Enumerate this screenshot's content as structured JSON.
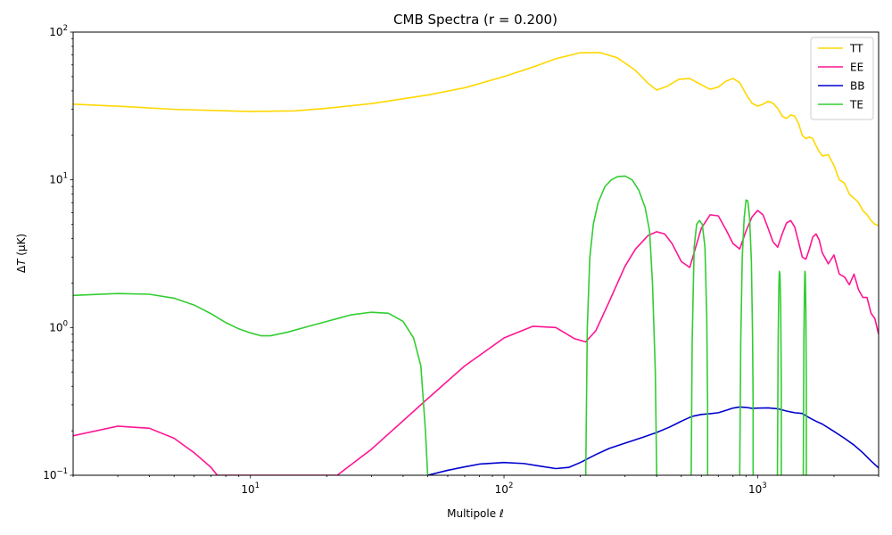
{
  "chart_data": {
    "type": "line",
    "title": "CMB Spectra (r = 0.200)",
    "xlabel": "Multipole ℓ",
    "ylabel_parts": {
      "delta": "Δ",
      "var": "T",
      "unit": " (μK)"
    },
    "xscale": "log",
    "yscale": "log",
    "xlim": [
      2,
      3000
    ],
    "ylim": [
      0.1,
      100
    ],
    "xticks": [
      {
        "value": 10,
        "base": "10",
        "exp": "1"
      },
      {
        "value": 100,
        "base": "10",
        "exp": "2"
      },
      {
        "value": 1000,
        "base": "10",
        "exp": "3"
      }
    ],
    "yticks": [
      {
        "value": 0.1,
        "base": "10",
        "exp": "−1"
      },
      {
        "value": 1,
        "base": "10",
        "exp": "0"
      },
      {
        "value": 10,
        "base": "10",
        "exp": "1"
      },
      {
        "value": 100,
        "base": "10",
        "exp": "2"
      }
    ],
    "grid": false,
    "legend_position": "top-right",
    "series": [
      {
        "name": "TT",
        "color": "#ffd700",
        "x": [
          2,
          3,
          5,
          10,
          15,
          20,
          30,
          50,
          70,
          100,
          130,
          160,
          200,
          240,
          280,
          330,
          370,
          400,
          440,
          490,
          540,
          600,
          650,
          700,
          750,
          800,
          850,
          900,
          950,
          1000,
          1050,
          1100,
          1150,
          1200,
          1250,
          1300,
          1350,
          1400,
          1450,
          1500,
          1550,
          1600,
          1650,
          1700,
          1750,
          1800,
          1900,
          2000,
          2100,
          2200,
          2300,
          2400,
          2500,
          2600,
          2700,
          2800,
          2900,
          3000
        ],
        "y": [
          32.5,
          31.5,
          30,
          29,
          29.3,
          30.5,
          32.8,
          37.5,
          42,
          50,
          58,
          66,
          72.5,
          72.5,
          67,
          55,
          45,
          40.5,
          43,
          48,
          48.5,
          44,
          41,
          42.5,
          46.5,
          48.5,
          45.5,
          38,
          33,
          31.5,
          32.5,
          34,
          33,
          30.5,
          27,
          26,
          27.5,
          27,
          24,
          20,
          19,
          19.5,
          19,
          17,
          15.5,
          14.5,
          14.8,
          12.5,
          10,
          9.5,
          8,
          7.5,
          7,
          6.2,
          5.8,
          5.3,
          5,
          4.9
        ]
      },
      {
        "name": "EE",
        "color": "#ff1493",
        "x": [
          2,
          3,
          4,
          5,
          6,
          7,
          7.4,
          22,
          30,
          50,
          70,
          100,
          130,
          160,
          190,
          210,
          230,
          260,
          300,
          330,
          370,
          400,
          430,
          460,
          500,
          540,
          570,
          600,
          650,
          700,
          750,
          800,
          850,
          900,
          950,
          1000,
          1050,
          1100,
          1150,
          1200,
          1250,
          1300,
          1350,
          1400,
          1450,
          1500,
          1550,
          1600,
          1650,
          1700,
          1750,
          1800,
          1900,
          2000,
          2100,
          2200,
          2300,
          2400,
          2500,
          2600,
          2700,
          2800,
          2900,
          3000
        ],
        "y": [
          0.185,
          0.215,
          0.208,
          0.178,
          0.142,
          0.113,
          0.1,
          0.1,
          0.15,
          0.33,
          0.55,
          0.85,
          1.02,
          1.0,
          0.84,
          0.8,
          0.95,
          1.5,
          2.6,
          3.4,
          4.2,
          4.45,
          4.3,
          3.7,
          2.8,
          2.55,
          3.5,
          4.7,
          5.8,
          5.7,
          4.6,
          3.7,
          3.4,
          4.5,
          5.6,
          6.2,
          5.8,
          4.7,
          3.8,
          3.5,
          4.3,
          5.1,
          5.3,
          4.8,
          3.8,
          3.0,
          2.9,
          3.4,
          4.1,
          4.3,
          3.9,
          3.2,
          2.7,
          3.1,
          2.3,
          2.2,
          1.95,
          2.3,
          1.8,
          1.6,
          1.6,
          1.25,
          1.15,
          0.9
        ]
      },
      {
        "name": "BB",
        "color": "#0000cd",
        "x": [
          50,
          60,
          70,
          80,
          100,
          120,
          140,
          160,
          180,
          200,
          230,
          260,
          300,
          350,
          400,
          450,
          500,
          550,
          600,
          650,
          700,
          750,
          800,
          850,
          900,
          950,
          1000,
          1100,
          1200,
          1300,
          1400,
          1500,
          1600,
          1700,
          1800,
          2000,
          2200,
          2400,
          2600,
          2800,
          3000
        ],
        "y": [
          0.1,
          0.108,
          0.114,
          0.119,
          0.122,
          0.12,
          0.115,
          0.111,
          0.113,
          0.122,
          0.138,
          0.152,
          0.165,
          0.18,
          0.195,
          0.212,
          0.232,
          0.25,
          0.258,
          0.261,
          0.265,
          0.275,
          0.285,
          0.29,
          0.288,
          0.284,
          0.285,
          0.286,
          0.282,
          0.272,
          0.265,
          0.262,
          0.245,
          0.232,
          0.222,
          0.198,
          0.178,
          0.16,
          0.142,
          0.125,
          0.112
        ]
      },
      {
        "name": "TE",
        "color": "#32cd32",
        "x": [
          2,
          3,
          4,
          5,
          6,
          7,
          8,
          9,
          10,
          11,
          12,
          14,
          17,
          20,
          25,
          30,
          35,
          40,
          44,
          47,
          49,
          50,
          50,
          null,
          210,
          210,
          213,
          218,
          225,
          235,
          250,
          265,
          280,
          300,
          320,
          340,
          360,
          375,
          385,
          395,
          400,
          400,
          null,
          547,
          547,
          552,
          562,
          575,
          590,
          605,
          620,
          630,
          635,
          635,
          null,
          850,
          850,
          858,
          870,
          885,
          900,
          915,
          930,
          945,
          955,
          960,
          960,
          null,
          1197,
          1197,
          1205,
          1212,
          1218,
          1225,
          1233,
          1240,
          1240,
          null,
          1514,
          1514,
          1522,
          1530,
          1536,
          1542,
          1550,
          1556,
          1556
        ],
        "y": [
          1.65,
          1.7,
          1.68,
          1.58,
          1.42,
          1.24,
          1.08,
          0.98,
          0.92,
          0.88,
          0.88,
          0.93,
          1.02,
          1.1,
          1.22,
          1.27,
          1.25,
          1.1,
          0.85,
          0.55,
          0.2,
          0.1,
          0.1,
          null,
          0.1,
          0.1,
          1.0,
          3.0,
          5.0,
          7.0,
          9.0,
          10.0,
          10.5,
          10.6,
          10.0,
          8.5,
          6.5,
          4.5,
          2.0,
          0.5,
          0.1,
          0.1,
          null,
          0.1,
          0.1,
          0.8,
          3.5,
          5.0,
          5.3,
          5.0,
          3.5,
          1.2,
          0.3,
          0.1,
          null,
          0.1,
          0.1,
          0.8,
          3.0,
          5.5,
          7.3,
          7.2,
          5.5,
          2.8,
          0.9,
          0.3,
          0.1,
          null,
          0.1,
          0.1,
          0.8,
          1.8,
          2.4,
          2.3,
          1.4,
          0.4,
          0.1,
          null,
          0.1,
          0.1,
          0.8,
          1.8,
          2.4,
          2.3,
          1.3,
          0.4,
          0.1
        ]
      }
    ]
  }
}
